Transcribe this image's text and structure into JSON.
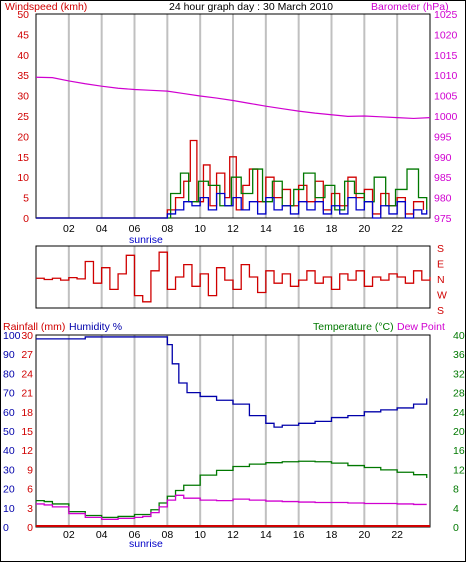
{
  "colors": {
    "wind_avg": "#0000c8",
    "wind_gust": "#d00000",
    "wind_green": "#007800",
    "pressure": "#d000d0",
    "direction": "#d00000",
    "humidity": "#0000aa",
    "temperature": "#007800",
    "dewpoint": "#d000d0",
    "rain": "#d00000",
    "grid": "#c0c0c0"
  },
  "chart_data": [
    {
      "type": "line",
      "title": "24 hour graph day : 30 March 2010",
      "left_axis": {
        "label": "Windspeed (kmh)",
        "ticks": [
          "0",
          "5",
          "10",
          "15",
          "20",
          "25",
          "30",
          "35",
          "40",
          "45",
          "50"
        ],
        "ylim": [
          0,
          50
        ]
      },
      "right_axis": {
        "label": "Barometer (hPa)",
        "ticks": [
          "975",
          "980",
          "985",
          "990",
          "995",
          "1000",
          "1005",
          "1010",
          "1015",
          "1020",
          "1025"
        ],
        "ylim": [
          975,
          1025
        ]
      },
      "x_ticks": [
        "02",
        "04",
        "06",
        "08",
        "10",
        "12",
        "14",
        "16",
        "18",
        "20",
        "22"
      ],
      "x_marker": "sunrise",
      "xlim": [
        0,
        24
      ],
      "grid": true,
      "series": [
        {
          "key": "pressure",
          "axis": "right",
          "x": [
            0,
            1,
            2,
            3,
            4,
            5,
            6,
            7,
            8,
            9,
            10,
            11,
            12,
            13,
            14,
            15,
            16,
            17,
            18,
            19,
            20,
            21,
            22,
            23,
            24
          ],
          "y": [
            1009.5,
            1009.4,
            1008.6,
            1007.9,
            1007.3,
            1006.8,
            1006.5,
            1006.3,
            1006.1,
            1005.5,
            1004.9,
            1004.4,
            1003.8,
            1003.1,
            1002.4,
            1001.8,
            1001.2,
            1000.7,
            1000.3,
            999.9,
            1000.0,
            999.8,
            999.6,
            999.4,
            999.6
          ]
        },
        {
          "key": "avg",
          "axis": "left",
          "x": [
            0,
            7.2,
            7.6,
            8.0,
            8.5,
            9.0,
            9.5,
            10.0,
            10.5,
            11.0,
            11.5,
            12.0,
            12.5,
            13.0,
            13.5,
            14.0,
            14.5,
            15.0,
            15.5,
            16.0,
            16.5,
            17.0,
            17.5,
            18.0,
            18.5,
            19.0,
            19.5,
            20.0,
            20.5,
            21.0,
            21.5,
            22.0,
            22.5,
            23.0,
            23.5,
            23.8
          ],
          "y": [
            0,
            0,
            0,
            1,
            2,
            4,
            3,
            5,
            2,
            6,
            3,
            5,
            2,
            4,
            1,
            5,
            2,
            3,
            1,
            4,
            2,
            4,
            1,
            3,
            1,
            5,
            2,
            4,
            0,
            3,
            1,
            4,
            0,
            2,
            1,
            2
          ]
        },
        {
          "key": "gust",
          "axis": "left",
          "x": [
            0,
            7.4,
            8.0,
            8.5,
            9.0,
            9.4,
            9.8,
            10.2,
            10.6,
            11.0,
            11.5,
            11.8,
            12.2,
            12.6,
            13.0,
            13.5,
            14.0,
            14.5,
            15.0,
            15.5,
            16.0,
            16.5,
            17.0,
            17.5,
            18.0,
            18.5,
            19.0,
            19.5,
            20.0,
            20.5,
            21.0,
            21.5,
            22.0,
            22.5,
            23.0,
            23.6
          ],
          "y": [
            0,
            0,
            2,
            5,
            9,
            19,
            4,
            13,
            3,
            11,
            5,
            15,
            2,
            8,
            12,
            4,
            10,
            5,
            7,
            3,
            8,
            4,
            9,
            2,
            6,
            3,
            10,
            5,
            7,
            1,
            6,
            3,
            5,
            1,
            4,
            2
          ]
        },
        {
          "key": "green",
          "axis": "left",
          "x": [
            0,
            7.3,
            8.2,
            8.8,
            9.3,
            9.9,
            10.5,
            11.2,
            11.9,
            12.5,
            13.2,
            13.8,
            14.4,
            15.0,
            15.7,
            16.3,
            17.0,
            17.6,
            18.2,
            18.8,
            19.4,
            20.0,
            20.6,
            21.3,
            21.9,
            22.6,
            23.3,
            23.8
          ],
          "y": [
            0,
            0,
            6,
            11,
            4,
            9,
            8,
            3,
            10,
            6,
            12,
            4,
            9,
            3,
            7,
            11,
            5,
            8,
            2,
            9,
            6,
            4,
            10,
            3,
            7,
            12,
            5,
            2
          ]
        }
      ]
    },
    {
      "type": "line",
      "axis_label": "S E N W S",
      "labels": [
        "S",
        "E",
        "N",
        "W",
        "S"
      ],
      "x": [
        0,
        0.5,
        1,
        1.5,
        2,
        2.5,
        3,
        3.5,
        4,
        4.5,
        5,
        5.5,
        6,
        6.5,
        7,
        7.5,
        8,
        8.5,
        9,
        9.5,
        10,
        10.5,
        11,
        11.5,
        12,
        12.5,
        13,
        13.5,
        14,
        14.5,
        15,
        15.5,
        16,
        16.5,
        17,
        17.5,
        18,
        18.5,
        19,
        19.5,
        20,
        20.5,
        21,
        21.5,
        22,
        22.5,
        23,
        23.5,
        24
      ],
      "y": [
        0.48,
        0.46,
        0.48,
        0.45,
        0.49,
        0.47,
        0.75,
        0.4,
        0.65,
        0.3,
        0.55,
        0.85,
        0.2,
        0.1,
        0.6,
        0.9,
        0.3,
        0.5,
        0.7,
        0.35,
        0.55,
        0.2,
        0.65,
        0.45,
        0.3,
        0.7,
        0.5,
        0.25,
        0.6,
        0.4,
        0.55,
        0.35,
        0.45,
        0.6,
        0.4,
        0.5,
        0.3,
        0.55,
        0.45,
        0.6,
        0.35,
        0.5,
        0.45,
        0.55,
        0.5,
        0.4,
        0.6,
        0.45,
        0.5
      ]
    },
    {
      "type": "line",
      "left_labels": {
        "rain": "Rainfall (mm)",
        "humidity": "Humidity %"
      },
      "right_labels": {
        "temperature": "Temperature (°C)",
        "dewpoint": "Dew Point"
      },
      "ticks_humidity": [
        "0",
        "10",
        "20",
        "30",
        "40",
        "50",
        "60",
        "70",
        "80",
        "90",
        "100"
      ],
      "ticks_rain": [
        "0",
        "3",
        "6",
        "9",
        "12",
        "15",
        "18",
        "21",
        "24",
        "27",
        "30"
      ],
      "ticks_temp": [
        "0",
        "4",
        "8",
        "12",
        "16",
        "20",
        "24",
        "28",
        "32",
        "36",
        "40"
      ],
      "humidity_ylim": [
        0,
        100
      ],
      "temp_ylim": [
        0,
        40
      ],
      "x_ticks": [
        "02",
        "04",
        "06",
        "08",
        "10",
        "12",
        "14",
        "16",
        "18",
        "20",
        "22"
      ],
      "x_marker": "sunrise",
      "xlim": [
        0,
        24
      ],
      "series": [
        {
          "key": "humidity",
          "x": [
            0,
            1,
            2,
            3,
            4,
            5,
            6,
            7,
            7.6,
            8,
            8.3,
            8.7,
            9.2,
            10,
            11,
            12,
            13,
            14,
            14.5,
            15,
            16,
            17,
            18,
            19,
            20,
            21,
            22,
            23,
            23.8
          ],
          "y": [
            98,
            98,
            98,
            99,
            99,
            99,
            99,
            99,
            99,
            95,
            85,
            75,
            70,
            68,
            66,
            64,
            58,
            54,
            52,
            53,
            54,
            55,
            57,
            58,
            60,
            61,
            62,
            64,
            67
          ]
        },
        {
          "key": "temperature",
          "x": [
            0,
            0.5,
            1,
            2,
            3,
            4,
            5,
            6,
            7,
            7.5,
            8,
            8.5,
            9,
            10,
            11,
            12,
            13,
            14,
            15,
            16,
            17,
            18,
            19,
            20,
            21,
            22,
            23,
            23.8
          ],
          "y": [
            5.5,
            5.3,
            4.8,
            3.2,
            2.4,
            2.0,
            2.2,
            2.6,
            3.6,
            5.0,
            6.4,
            7.6,
            8.7,
            10.8,
            11.8,
            12.6,
            13.1,
            13.4,
            13.6,
            13.7,
            13.6,
            13.3,
            12.8,
            12.4,
            11.9,
            11.4,
            10.9,
            10.2
          ]
        },
        {
          "key": "dewpoint",
          "x": [
            0,
            0.5,
            1,
            2,
            3,
            4,
            5,
            6,
            6.5,
            7,
            7.5,
            8,
            8.5,
            9,
            10,
            11,
            12,
            13,
            14,
            15,
            16,
            17,
            18,
            19,
            20,
            21,
            22,
            23,
            23.8
          ],
          "y": [
            4.8,
            4.6,
            4.2,
            2.8,
            2.0,
            1.6,
            1.8,
            2.0,
            2.2,
            3.0,
            4.2,
            5.6,
            6.6,
            6.0,
            5.6,
            5.5,
            5.8,
            5.6,
            5.4,
            5.3,
            5.2,
            5.1,
            5.1,
            5.0,
            4.9,
            4.9,
            4.8,
            4.7,
            4.7
          ]
        },
        {
          "key": "rain",
          "x": [
            0,
            24
          ],
          "y": [
            0,
            0
          ]
        }
      ]
    }
  ]
}
